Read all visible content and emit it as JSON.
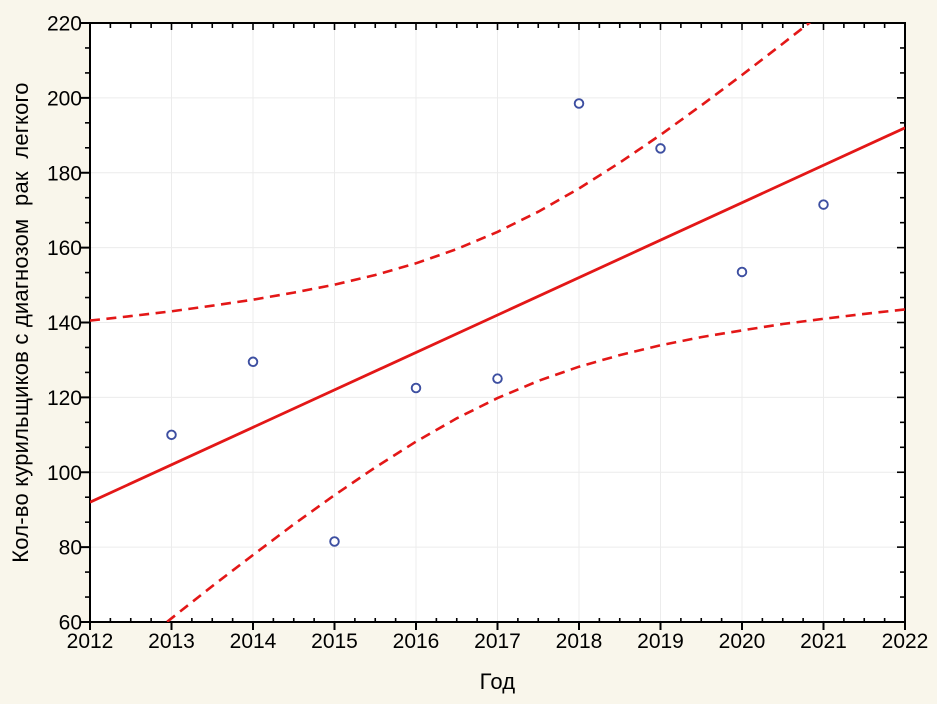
{
  "chart_data": {
    "type": "scatter",
    "title": "",
    "xlabel": "Год",
    "ylabel": "Кол-во курильщиков с диагнозом  рак  легкого",
    "xlim": [
      2012,
      2022
    ],
    "ylim": [
      60,
      220
    ],
    "x_ticks": [
      2012,
      2013,
      2014,
      2015,
      2016,
      2017,
      2018,
      2019,
      2020,
      2021,
      2022
    ],
    "y_ticks": [
      60,
      80,
      100,
      120,
      140,
      160,
      180,
      200,
      220
    ],
    "grid": true,
    "legend": "none",
    "points": [
      {
        "x": 2013,
        "y": 110
      },
      {
        "x": 2014,
        "y": 129.5
      },
      {
        "x": 2015,
        "y": 81.5
      },
      {
        "x": 2016,
        "y": 122.5
      },
      {
        "x": 2017,
        "y": 125
      },
      {
        "x": 2018,
        "y": 198.5
      },
      {
        "x": 2019,
        "y": 186.5
      },
      {
        "x": 2020,
        "y": 153.5
      },
      {
        "x": 2021,
        "y": 171.5
      }
    ],
    "regression_line": {
      "x": [
        2012,
        2022
      ],
      "y": [
        92,
        192
      ]
    },
    "confidence_band_upper": {
      "x": [
        2012,
        2012.5,
        2013,
        2013.5,
        2014,
        2014.5,
        2015,
        2015.5,
        2016,
        2016.5,
        2017,
        2017.5,
        2018,
        2018.5,
        2019,
        2019.5,
        2020,
        2020.5,
        2021,
        2021.5,
        2022
      ],
      "y": [
        140.5,
        141.7,
        143.0,
        144.5,
        146.1,
        148.0,
        150.1,
        152.7,
        155.8,
        159.6,
        164.2,
        169.6,
        175.8,
        182.7,
        190.1,
        198.0,
        206.1,
        214.5,
        223.0,
        231.7,
        240.5
      ]
    },
    "confidence_band_lower": {
      "x": [
        2012,
        2012.5,
        2013,
        2013.5,
        2014,
        2014.5,
        2015,
        2015.5,
        2016,
        2016.5,
        2017,
        2017.5,
        2018,
        2018.5,
        2019,
        2019.5,
        2020,
        2020.5,
        2021,
        2021.5,
        2022
      ],
      "y": [
        43.5,
        52.3,
        61.0,
        69.6,
        77.9,
        86.1,
        93.9,
        101.3,
        108.2,
        114.4,
        119.8,
        124.4,
        128.2,
        131.3,
        133.9,
        136.1,
        137.9,
        139.6,
        141.0,
        142.3,
        143.5
      ]
    },
    "colors": {
      "line": "#e31717",
      "band": "#e31717",
      "marker": "#3d4fa1",
      "marker_fill": "#ffffff",
      "grid": "#ececec",
      "axis": "#000000",
      "background": "#f9f6eb",
      "plot_background": "#ffffff"
    }
  }
}
